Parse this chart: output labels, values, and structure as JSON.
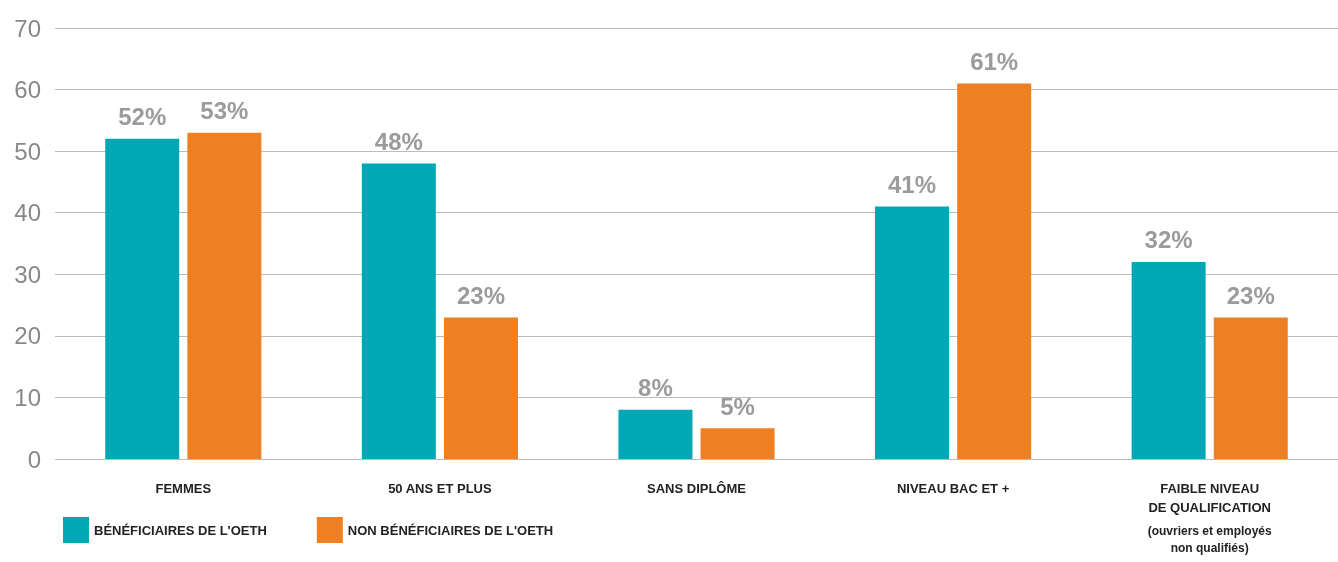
{
  "chart_data": {
    "type": "bar",
    "categories": [
      "FEMMES",
      "50 ANS ET PLUS",
      "SANS DIPLÔME",
      "NIVEAU BAC ET +",
      "FAIBLE NIVEAU\nDE QUALIFICATION"
    ],
    "series": [
      {
        "name": "BÉNÉFICIAIRES DE L'OETH",
        "color": "#00a8b5",
        "values": [
          52,
          48,
          8,
          41,
          32
        ],
        "value_labels": [
          "52%",
          "48%",
          "8%",
          "41%",
          "32%"
        ]
      },
      {
        "name": "NON BÉNÉFICIAIRES DE L'OETH",
        "color": "#ee7f22",
        "values": [
          53,
          23,
          5,
          61,
          23
        ],
        "value_labels": [
          "53%",
          "23%",
          "5%",
          "61%",
          "23%"
        ]
      }
    ],
    "ylim": [
      0,
      70
    ],
    "yticks": [
      0,
      10,
      20,
      30,
      40,
      50,
      60,
      70
    ],
    "grid": "y",
    "legend": "bottom left",
    "annotations": [
      "(ouvriers et employés\nnon qualifiés)"
    ]
  }
}
